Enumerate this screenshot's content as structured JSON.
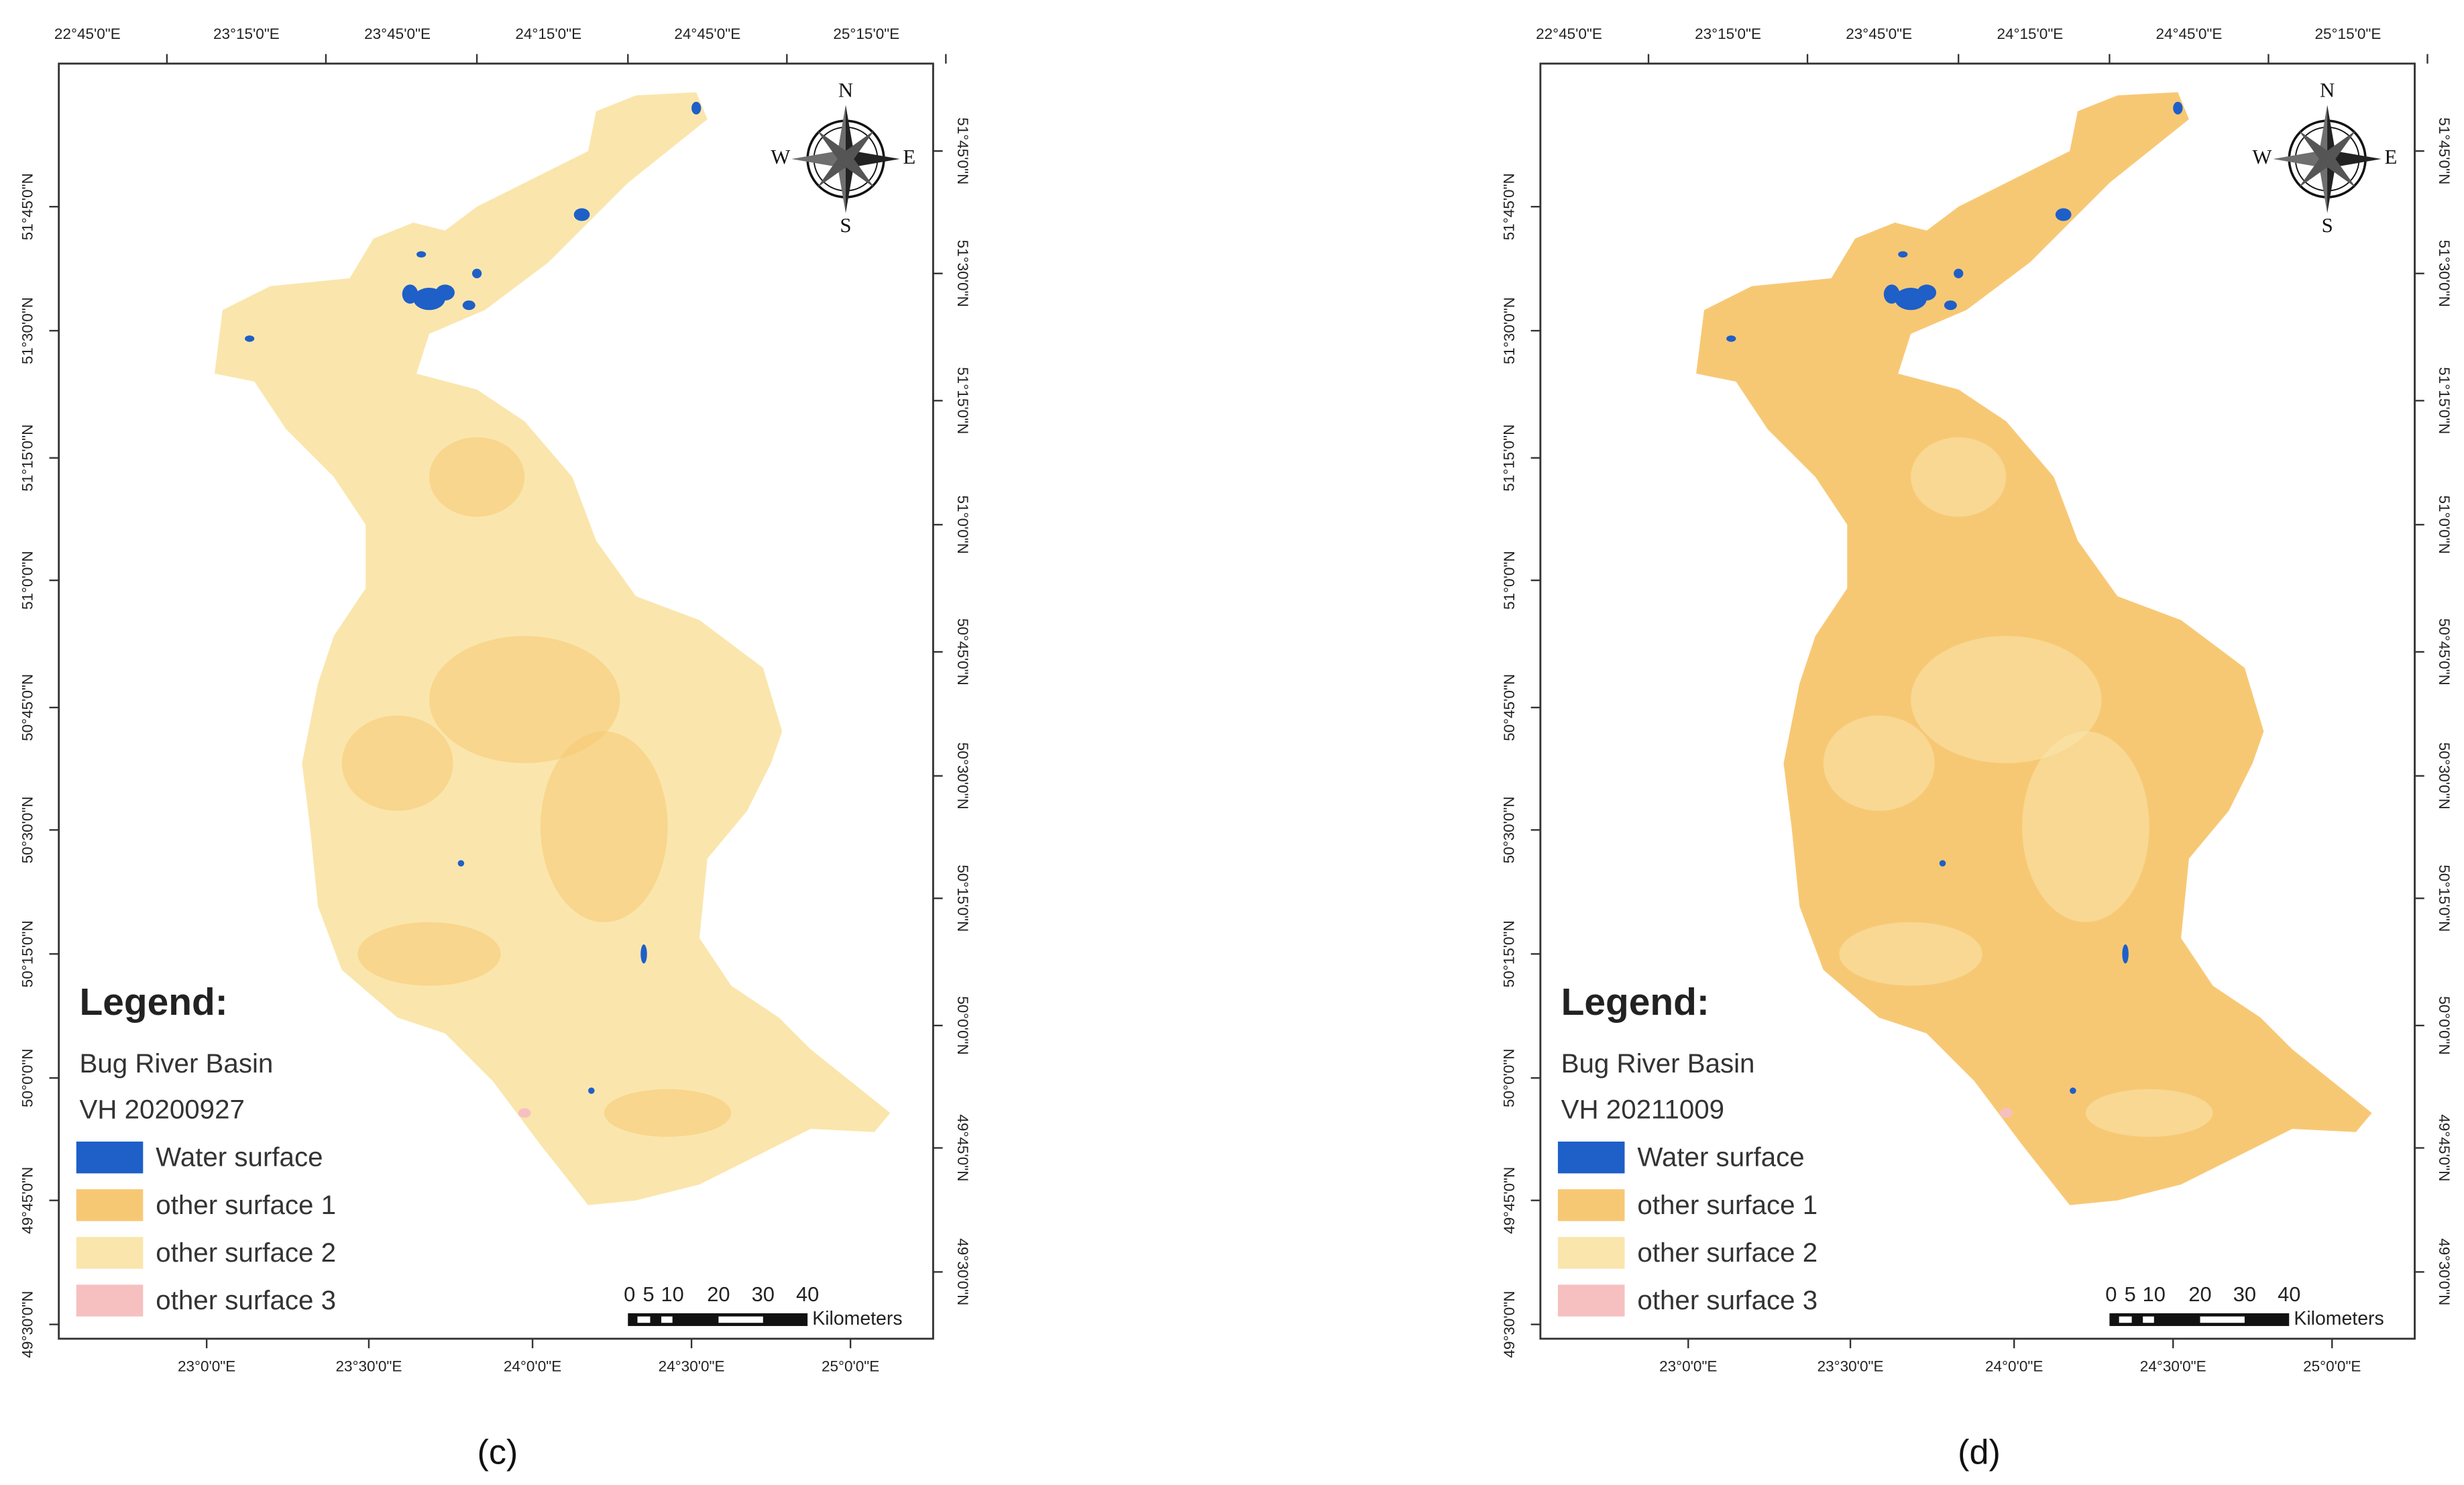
{
  "panels": [
    {
      "caption": "(c)",
      "top_labels": [
        "22°45'0\"E",
        "23°15'0\"E",
        "23°45'0\"E",
        "24°15'0\"E",
        "24°45'0\"E",
        "25°15'0\"E"
      ],
      "bottom_labels": [
        "23°0'0\"E",
        "23°30'0\"E",
        "24°0'0\"E",
        "24°30'0\"E",
        "25°0'0\"E"
      ],
      "left_labels": [
        "51°45'0\"N",
        "51°30'0\"N",
        "51°15'0\"N",
        "51°0'0\"N",
        "50°45'0\"N",
        "50°30'0\"N",
        "50°15'0\"N",
        "50°0'0\"N",
        "49°45'0\"N",
        "49°30'0\"N"
      ],
      "right_labels": [
        "51°45'0\"N",
        "51°30'0\"N",
        "51°15'0\"N",
        "51°0'0\"N",
        "50°45'0\"N",
        "50°30'0\"N",
        "50°15'0\"N",
        "50°0'0\"N",
        "49°45'0\"N",
        "49°30'0\"N"
      ],
      "compass": {
        "n": "N",
        "s": "S",
        "w": "W",
        "e": "E"
      },
      "legend": {
        "title": "Legend:",
        "lines": [
          "Bug River Basin",
          "VH 20200927"
        ],
        "items": [
          {
            "label": "Water surface",
            "color": "#1e5fc8"
          },
          {
            "label": "other surface 1",
            "color": "#f7c874"
          },
          {
            "label": "other surface 2",
            "color": "#fae6ac"
          },
          {
            "label": "other surface 3",
            "color": "#f6c0c0"
          }
        ]
      },
      "scale": {
        "ticks": [
          "0",
          "5",
          "10",
          "20",
          "30",
          "40"
        ],
        "unit": "Kilometers"
      }
    },
    {
      "caption": "(d)",
      "top_labels": [
        "22°45'0\"E",
        "23°15'0\"E",
        "23°45'0\"E",
        "24°15'0\"E",
        "24°45'0\"E",
        "25°15'0\"E"
      ],
      "bottom_labels": [
        "23°0'0\"E",
        "23°30'0\"E",
        "24°0'0\"E",
        "24°30'0\"E",
        "25°0'0\"E"
      ],
      "left_labels": [
        "51°45'0\"N",
        "51°30'0\"N",
        "51°15'0\"N",
        "51°0'0\"N",
        "50°45'0\"N",
        "50°30'0\"N",
        "50°15'0\"N",
        "50°0'0\"N",
        "49°45'0\"N",
        "49°30'0\"N"
      ],
      "right_labels": [
        "51°45'0\"N",
        "51°30'0\"N",
        "51°15'0\"N",
        "51°0'0\"N",
        "50°45'0\"N",
        "50°30'0\"N",
        "50°15'0\"N",
        "50°0'0\"N",
        "49°45'0\"N",
        "49°30'0\"N"
      ],
      "compass": {
        "n": "N",
        "s": "S",
        "w": "W",
        "e": "E"
      },
      "legend": {
        "title": "Legend:",
        "lines": [
          "Bug River Basin",
          "VH 20211009"
        ],
        "items": [
          {
            "label": "Water surface",
            "color": "#1e5fc8"
          },
          {
            "label": "other surface 1",
            "color": "#f7c874"
          },
          {
            "label": "other surface 2",
            "color": "#fae6ac"
          },
          {
            "label": "other surface 3",
            "color": "#f6c0c0"
          }
        ]
      },
      "scale": {
        "ticks": [
          "0",
          "5",
          "10",
          "20",
          "30",
          "40"
        ],
        "unit": "Kilometers"
      }
    }
  ]
}
